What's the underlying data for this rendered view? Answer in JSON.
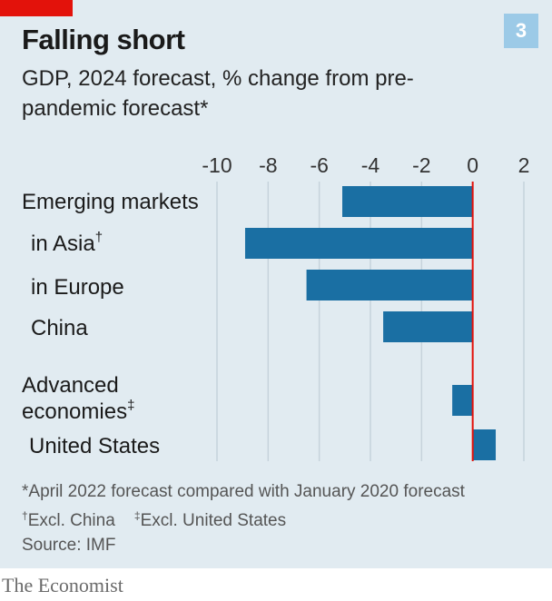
{
  "badge": "3",
  "title": "Falling short",
  "subtitle": "GDP, 2024 forecast, % change from pre-pandemic forecast*",
  "chart_data": {
    "type": "bar",
    "orientation": "horizontal",
    "xlim": [
      -10,
      2
    ],
    "xticks": [
      "-10",
      "-8",
      "-6",
      "-4",
      "-2",
      "0",
      "2"
    ],
    "categories": [
      {
        "label": "Emerging markets",
        "mark": "",
        "value": -5.1
      },
      {
        "label": "in Asia",
        "mark": "†",
        "value": -8.9
      },
      {
        "label": "in Europe",
        "mark": "",
        "value": -6.5
      },
      {
        "label": "China",
        "mark": "",
        "value": -3.5
      },
      {
        "label": "Advanced economies",
        "mark": "‡",
        "value": -0.8
      },
      {
        "label": "United States",
        "mark": "",
        "value": 0.9
      }
    ],
    "bar_color": "#1a6fa3",
    "zero_line_color": "#e3120b",
    "grid": true
  },
  "footnotes": {
    "star": "*April 2022 forecast compared with January 2020 forecast",
    "dagger_mark": "†",
    "dagger": "Excl. China",
    "ddagger_mark": "‡",
    "ddagger": "Excl. United States"
  },
  "source": "Source: IMF",
  "publisher": "The Economist"
}
